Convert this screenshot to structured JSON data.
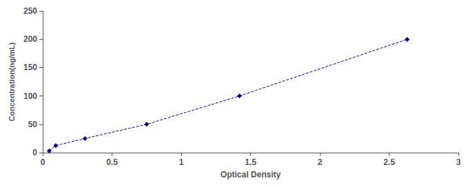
{
  "chart_data": {
    "type": "line",
    "x": [
      0.047,
      0.094,
      0.305,
      0.75,
      1.42,
      2.63
    ],
    "values": [
      3.13,
      12.5,
      25.0,
      50.0,
      100.0,
      200.0
    ],
    "color": "#00008B",
    "marker": "diamond",
    "line_style": "dashed",
    "xlabel": "Optical Density",
    "ylabel": "Concentration(ng/mL)",
    "xlim": [
      0,
      3
    ],
    "ylim": [
      0,
      250
    ],
    "xticks": [
      0,
      0.5,
      1,
      1.5,
      2,
      2.5,
      3
    ],
    "yticks": [
      0,
      50,
      100,
      150,
      200,
      250
    ],
    "grid": false
  }
}
